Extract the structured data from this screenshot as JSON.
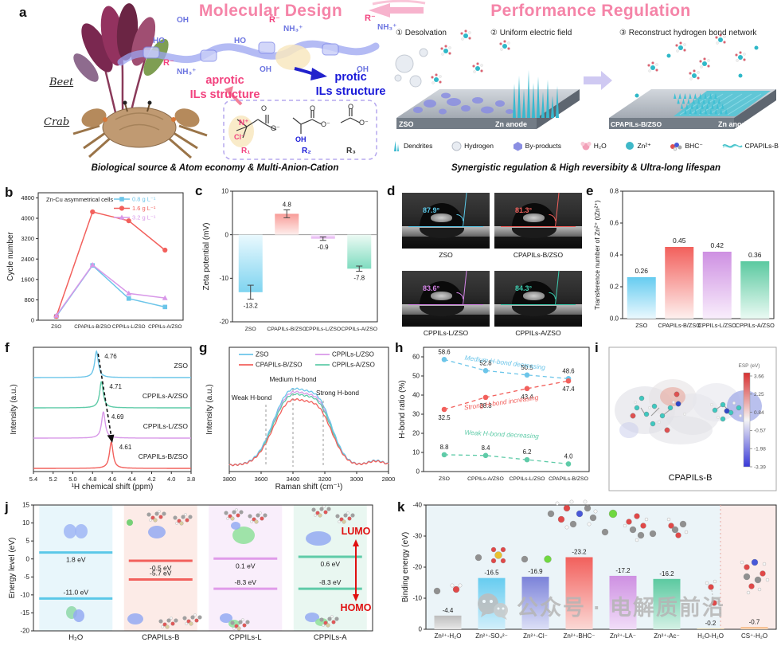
{
  "panels": {
    "a": "a",
    "b": "b",
    "c": "c",
    "d": "d",
    "e": "e",
    "f": "f",
    "g": "g",
    "h": "h",
    "i": "i",
    "j": "j",
    "k": "k"
  },
  "panel_a": {
    "molecular_design": {
      "title": "Molecular Design",
      "beet_label": "Beet",
      "crab_label": "Crab",
      "aprotic1": "aprotic",
      "aprotic2": "ILs structure",
      "protic1": "protic",
      "protic2": "ILs structure",
      "chain": {
        "r1": "R⁻",
        "r2": "R⁻",
        "r3": "R⁻",
        "nh31": "NH₃⁺",
        "nh32": "NH₃⁺",
        "nh33": "NH₃⁺",
        "oh1": "OH",
        "oh2": "OH",
        "oh3": "OH",
        "ho1": "HO",
        "ho2": "HO"
      },
      "anion_labels": {
        "nplus": "N⁺",
        "cl": "Cl⁻",
        "o1": "O",
        "om1": "O⁻",
        "oh": "OH",
        "o2": "O",
        "om2": "O⁻",
        "o3": "O",
        "om3": "O⁻",
        "r1": "R₁",
        "r2": "R₂",
        "r3": "R₃"
      },
      "caption": "Biological source & Atom economy & Multi-Anion-Cation"
    },
    "performance_regulation": {
      "title": "Performance Regulation",
      "step1": "① Desolvation",
      "step2": "② Uniform electric field",
      "step3": "③ Reconstruct hydrogen bond network",
      "zso": "ZSO",
      "zn1": "Zn anode",
      "cpap": "CPAPILs-B/ZSO",
      "zn2": "Zn anode",
      "legend": [
        "Dendrites",
        "Hydrogen",
        "By-products",
        "H₂O",
        "Zn²⁺",
        "BHC⁻",
        "CPAPILs-B"
      ],
      "caption": "Synergistic regulation & High reversibity & Ultra-long lifespan"
    }
  },
  "panel_d": {
    "tiles": [
      {
        "name": "ZSO",
        "angle": "87.9°",
        "color": "#5BC8E8"
      },
      {
        "name": "CPAPILs-B/ZSO",
        "angle": "81.3°",
        "color": "#F2605C"
      },
      {
        "name": "CPPILs-L/ZSO",
        "angle": "83.6°",
        "color": "#D585E8"
      },
      {
        "name": "CPPILs-A/ZSO",
        "angle": "84.3°",
        "color": "#3ECDB0"
      }
    ]
  },
  "panel_i": {
    "molecule_label": "CPAPILs-B",
    "colorbar_title": "ESP (eV)",
    "colorbar_ticks": [
      "3.66",
      "2.25",
      "0.84",
      "-0.57",
      "-1.98",
      "-3.39"
    ]
  },
  "watermark": {
    "icon": "wechat-icon",
    "text": "公众号 · 电解质前沿"
  },
  "chart_data": [
    {
      "panel": "b",
      "type": "line",
      "annotation": "Zn-Cu asymmetrical cells",
      "ylabel": "Cycle number",
      "categories": [
        "ZSO",
        "CPAPILs-B/ZSO",
        "CPPILs-L/ZSO",
        "CPPILs-A/ZSO"
      ],
      "yticks": [
        0,
        800,
        1600,
        2400,
        3200,
        4000,
        4800
      ],
      "ylim": [
        0,
        5000
      ],
      "series": [
        {
          "name": "0.8 g L⁻¹",
          "color": "#6CC5E9",
          "marker": "square",
          "values": [
            150,
            2150,
            850,
            520
          ]
        },
        {
          "name": "1.6 g L⁻¹",
          "color": "#F2605C",
          "marker": "circle",
          "values": [
            150,
            4250,
            3900,
            2750
          ]
        },
        {
          "name": "3.2 g L⁻¹",
          "color": "#D898E8",
          "marker": "triangle",
          "values": [
            180,
            2170,
            1050,
            870
          ]
        }
      ],
      "legend_position": "top-right"
    },
    {
      "panel": "c",
      "type": "bar",
      "ylabel": "Zeta potential (mV)",
      "categories": [
        "ZSO",
        "CPAPILs-B/ZSO",
        "CPPILs-L/ZSO",
        "CPPILs-A/ZSO"
      ],
      "values": [
        -13.2,
        4.8,
        -0.9,
        -7.8
      ],
      "labels": [
        "-13.2",
        "4.8",
        "-0.9",
        "-7.8"
      ],
      "errors": [
        1.6,
        0.9,
        0.4,
        0.6
      ],
      "colors": [
        "#7FD4F0",
        "#F89C98",
        "#E4AEF0",
        "#7FDCC0"
      ],
      "colors_light": [
        "#EAF9FE",
        "#FEEEEC",
        "#FAF0FD",
        "#ECFAF4"
      ],
      "yticks": [
        10,
        0,
        -10,
        -20
      ],
      "ylim": [
        -20,
        10
      ]
    },
    {
      "panel": "e",
      "type": "bar",
      "ylabel": "Transference number of Zn²⁺ (tZn²⁺)",
      "categories": [
        "ZSO",
        "CPAPILs-B/ZSO",
        "CPPILs-L/ZSO",
        "CPPILs-A/ZSO"
      ],
      "values": [
        0.26,
        0.45,
        0.42,
        0.36
      ],
      "labels": [
        "0.26",
        "0.45",
        "0.42",
        "0.36"
      ],
      "colors": [
        "#66CCF0",
        "#F2605C",
        "#CE90E2",
        "#5BC9A0"
      ],
      "colors_light": [
        "#EAF8FE",
        "#FEF0EE",
        "#F9EEFC",
        "#EAFAF3"
      ],
      "yticks": [
        "0.0",
        "0.2",
        "0.4",
        "0.6",
        "0.8"
      ],
      "ylim": [
        0,
        0.8
      ]
    },
    {
      "panel": "f",
      "type": "nmr-stack",
      "xlabel": "¹H chemical shift (ppm)",
      "ylabel": "Intensity (a.u.)",
      "xticks": [
        "5.4",
        "5.2",
        "5.0",
        "4.8",
        "4.6",
        "4.4",
        "4.2",
        "4.0",
        "3.8"
      ],
      "xlim": [
        5.4,
        3.8
      ],
      "series": [
        {
          "name": "ZSO",
          "peak": 4.76,
          "peak_label": "4.76",
          "color": "#6CC5E9"
        },
        {
          "name": "CPPILs-A/ZSO",
          "peak": 4.71,
          "peak_label": "4.71",
          "color": "#5FCBA8"
        },
        {
          "name": "CPPILs-L/ZSO",
          "peak": 4.69,
          "peak_label": "4.69",
          "color": "#D898E8"
        },
        {
          "name": "CPAPILs-B/ZSO",
          "peak": 4.61,
          "peak_label": "4.61",
          "color": "#F2605C"
        }
      ]
    },
    {
      "panel": "g",
      "type": "raman",
      "xlabel": "Raman shift (cm⁻¹)",
      "ylabel": "Intensity (a.u.)",
      "xticks": [
        3800,
        3600,
        3400,
        3200,
        3000,
        2800
      ],
      "xlim": [
        3800,
        2800
      ],
      "series": [
        {
          "name": "ZSO",
          "color": "#6CC5E9",
          "scale": 1.0
        },
        {
          "name": "CPAPILs-B/ZSO",
          "color": "#F2605C",
          "scale": 0.86
        },
        {
          "name": "CPPILs-L/ZSO",
          "color": "#D898E8",
          "scale": 0.96
        },
        {
          "name": "CPPILs-A/ZSO",
          "color": "#5FCBA8",
          "scale": 0.93
        }
      ],
      "annotations": [
        {
          "text": "Weak H-bond",
          "x": 3570
        },
        {
          "text": "Medium H-bond",
          "x": 3400
        },
        {
          "text": "Strong H-bond",
          "x": 3210
        }
      ]
    },
    {
      "panel": "h",
      "type": "scatter-line",
      "ylabel": "H-bond ratio (%)",
      "categories": [
        "ZSO",
        "CPPILs-A/ZSO",
        "CPPILs-L/ZSO",
        "CPAPILs-B/ZSO"
      ],
      "yticks": [
        0,
        10,
        20,
        30,
        40,
        50,
        60
      ],
      "ylim": [
        0,
        65
      ],
      "series": [
        {
          "name": "Medium H-bond decreasing",
          "color": "#6CC5E9",
          "values": [
            58.6,
            52.8,
            50.5,
            48.6
          ],
          "labels": [
            "58.6",
            "52.8",
            "50.5",
            "48.6"
          ],
          "label_side": "above",
          "rot": 7,
          "tx": 634,
          "ty": 458
        },
        {
          "name": "Strong H-bond increasing",
          "color": "#F2605C",
          "values": [
            32.5,
            38.8,
            43.4,
            47.4
          ],
          "labels": [
            "32.5",
            "38.8",
            "43.4",
            "47.4"
          ],
          "label_side": "below",
          "rot": -8,
          "tx": 630,
          "ty": 508
        },
        {
          "name": "Weak H-bond decreasing",
          "color": "#5FCBA8",
          "values": [
            8.8,
            8.4,
            6.2,
            4.0
          ],
          "labels": [
            "8.8",
            "8.4",
            "6.2",
            "4.0"
          ],
          "label_side": "above",
          "rot": 3,
          "tx": 630,
          "ty": 548
        }
      ]
    },
    {
      "panel": "j",
      "type": "energy-level",
      "ylabel": "Energy level (eV)",
      "yticks": [
        15,
        10,
        5,
        0,
        -5,
        -10,
        -15,
        -20
      ],
      "ylim": [
        -20,
        15
      ],
      "lumo": "LUMO",
      "homo": "HOMO",
      "groups": [
        {
          "name": "H₂O",
          "color": "#5BC8E8",
          "bg": "#E8F6FB",
          "lumo": 1.8,
          "homo": -11.0,
          "lumo_label": "1.8 eV",
          "homo_label": "-11.0 eV"
        },
        {
          "name": "CPAPILs-B",
          "color": "#F2605C",
          "bg": "#FCEBE7",
          "lumo": -0.5,
          "homo": -5.7,
          "lumo_label": "-0.5 eV",
          "homo_label": "-5.7 eV"
        },
        {
          "name": "CPPILs-L",
          "color": "#E09BEA",
          "bg": "#F9EEFB",
          "lumo": 0.1,
          "homo": -8.3,
          "lumo_label": "0.1 eV",
          "homo_label": "-8.3 eV"
        },
        {
          "name": "CPPILs-A",
          "color": "#5FCBA8",
          "bg": "#E9F7F1",
          "lumo": 0.6,
          "homo": -8.3,
          "lumo_label": "0.6 eV",
          "homo_label": "-8.3 eV"
        }
      ]
    },
    {
      "panel": "k",
      "type": "bar",
      "ylabel": "Binding energy (eV)",
      "yticks": [
        "0",
        "-10",
        "-20",
        "-30",
        "-40"
      ],
      "ylim": [
        0,
        -40
      ],
      "categories": [
        "Zn²⁺-H₂O",
        "Zn²⁺-SO₄²⁻",
        "Zn²⁺-Cl⁻",
        "Zn²⁺-BHC⁻",
        "Zn²⁺-LA⁻",
        "Zn²⁺-Ac⁻",
        "H₂O-H₂O",
        "CS⁺-H₂O"
      ],
      "values": [
        -4.4,
        -16.5,
        -16.9,
        -23.2,
        -17.2,
        -16.2,
        -0.2,
        -0.7
      ],
      "labels": [
        "-4.4",
        "-16.5",
        "-16.9",
        "-23.2",
        "-17.2",
        "-16.2",
        "-0.2",
        "-0.7"
      ],
      "colors": [
        "#BDBDBD",
        "#66CCF0",
        "#7B82D9",
        "#F2605C",
        "#CE90E2",
        "#5BC9A0",
        "#C8A95A",
        "#F2A96B"
      ],
      "colors_light": [
        "#E8E8E8",
        "#D2EFFB",
        "#DCDFF6",
        "#FBD8D5",
        "#F1DDF8",
        "#D4F1E5",
        "#EFE3BE",
        "#FBE3CC"
      ]
    }
  ]
}
